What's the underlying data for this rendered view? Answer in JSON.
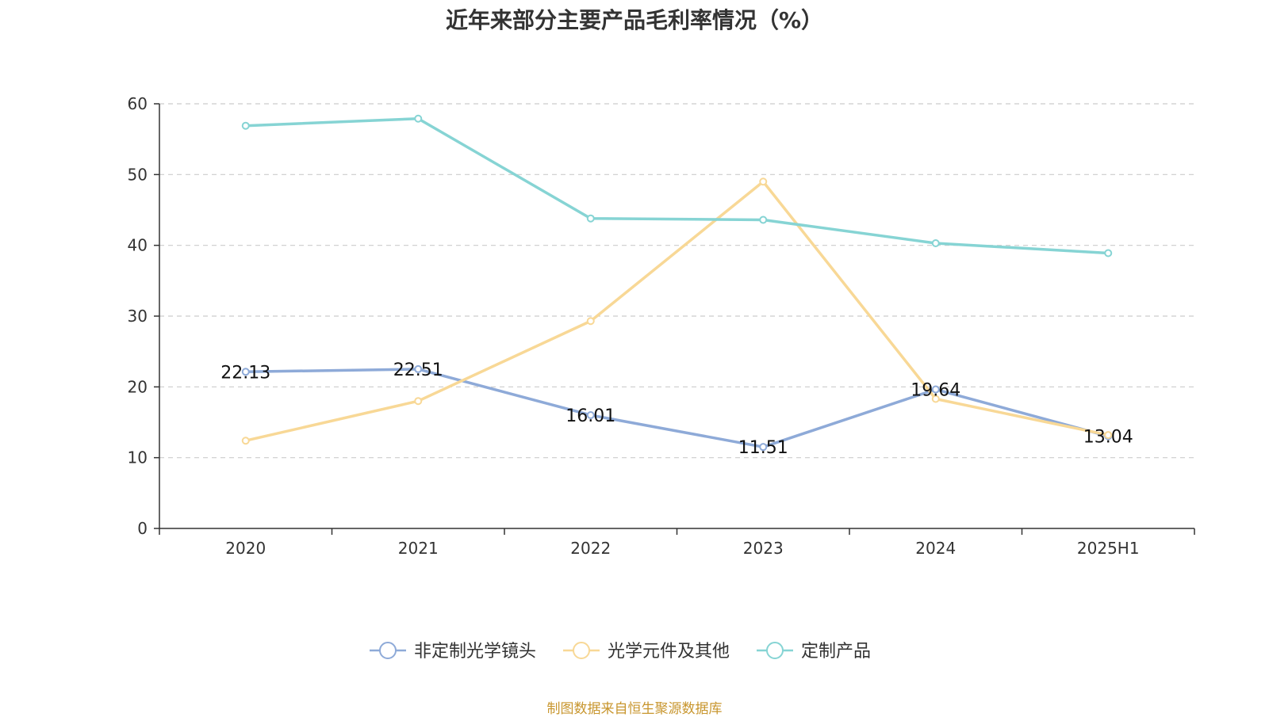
{
  "colors": {
    "series": [
      "#8eaad8",
      "#f8d896",
      "#86d4d4"
    ],
    "axis": "#333333",
    "grid": "#cccccc",
    "source": "#c8962e"
  },
  "source_note": "制图数据来自恒生聚源数据库",
  "chart_data": {
    "type": "line",
    "title": "近年来部分主要产品毛利率情况（%）",
    "xlabel": "",
    "ylabel": "",
    "categories": [
      "2020",
      "2021",
      "2022",
      "2023",
      "2024",
      "2025H1"
    ],
    "ylim": [
      0,
      60
    ],
    "yticks": [
      0,
      10,
      20,
      30,
      40,
      50,
      60
    ],
    "grid": true,
    "legend_position": "bottom",
    "series": [
      {
        "name": "非定制光学镜头",
        "values": [
          22.13,
          22.51,
          16.01,
          11.51,
          19.64,
          13.04
        ],
        "data_labels": [
          "22.13",
          "22.51",
          "16.01",
          "11.51",
          "19.64",
          "13.04"
        ]
      },
      {
        "name": "光学元件及其他",
        "values": [
          12.4,
          18.0,
          29.3,
          49.0,
          18.3,
          13.2
        ]
      },
      {
        "name": "定制产品",
        "values": [
          56.9,
          57.9,
          43.8,
          43.6,
          40.3,
          38.9
        ]
      }
    ]
  }
}
